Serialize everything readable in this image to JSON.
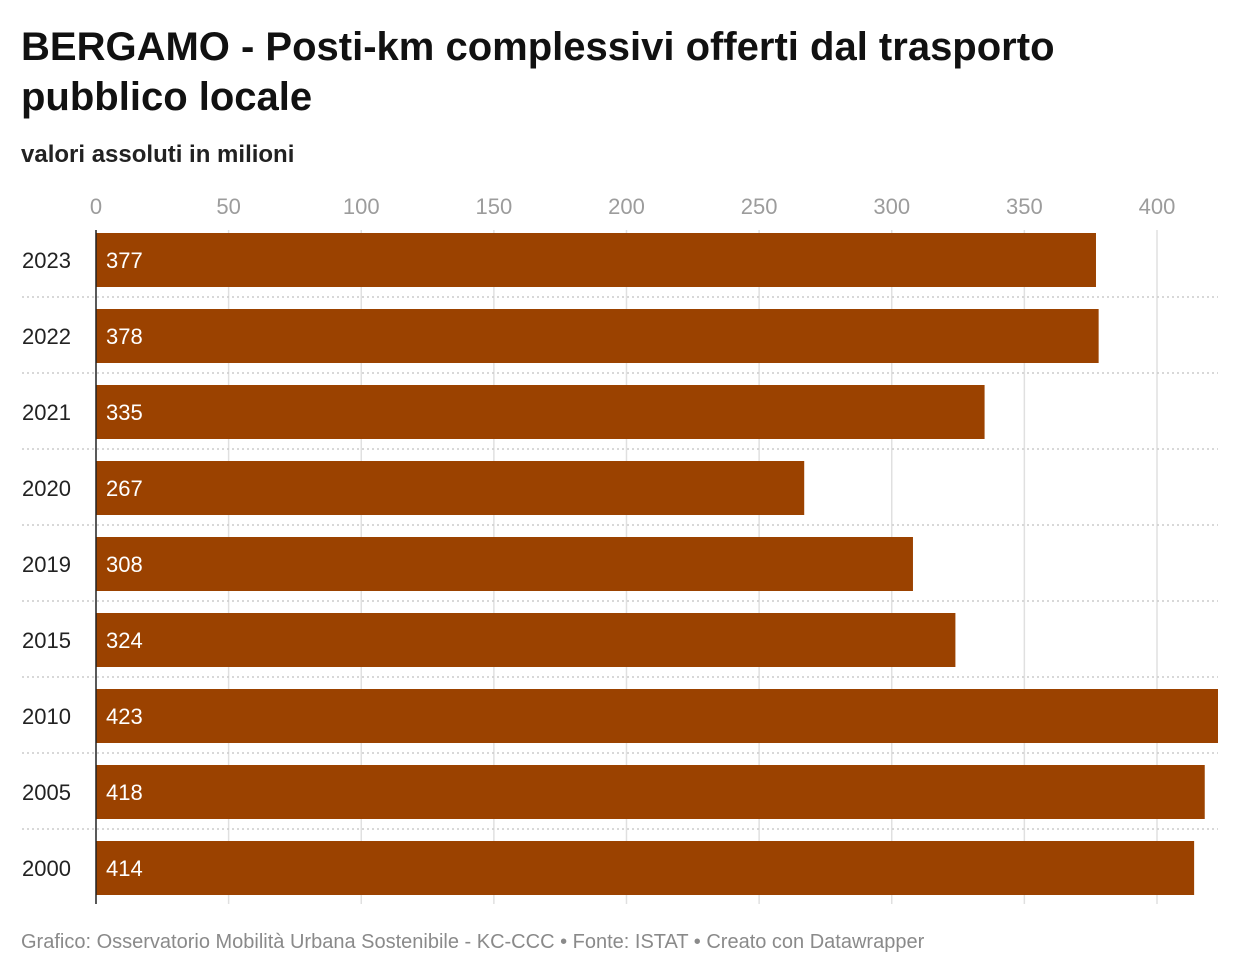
{
  "title": "BERGAMO - Posti-km complessivi offerti dal trasporto pubblico locale",
  "subtitle": "valori assoluti in milioni",
  "footer": "Grafico: Osservatorio Mobilità Urbana Sostenibile - KC-CCC • Fonte: ISTAT • Creato con Datawrapper",
  "colors": {
    "bar": "#9b4200",
    "grid": "#e0e0e0",
    "separator": "#cccccc"
  },
  "chart_data": {
    "type": "bar",
    "orientation": "horizontal",
    "categories": [
      "2023",
      "2022",
      "2021",
      "2020",
      "2019",
      "2015",
      "2010",
      "2005",
      "2000"
    ],
    "values": [
      377,
      378,
      335,
      267,
      308,
      324,
      423,
      418,
      414
    ],
    "value_labels": [
      "377",
      "378",
      "335",
      "267",
      "308",
      "324",
      "423",
      "418",
      "414"
    ],
    "ticks": [
      0,
      50,
      100,
      150,
      200,
      250,
      300,
      350,
      400
    ],
    "tick_labels": [
      "0",
      "50",
      "100",
      "150",
      "200",
      "250",
      "300",
      "350",
      "400"
    ],
    "xlim": [
      0,
      423
    ],
    "grid": true,
    "legend": "none"
  }
}
